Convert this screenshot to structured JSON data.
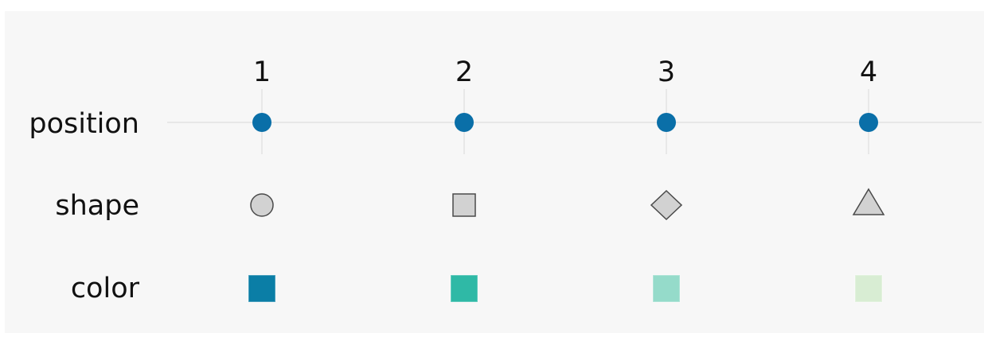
{
  "columns": [
    "1",
    "2",
    "3",
    "4"
  ],
  "rows": {
    "position": "position",
    "shape": "shape",
    "color": "color"
  },
  "shapes": [
    "circle-icon",
    "square-icon",
    "diamond-icon",
    "triangle-icon"
  ],
  "colors": {
    "position_point": "#0a6fa8",
    "shape_fill": "#d2d2d2",
    "shape_stroke": "#4a4a4a",
    "axis_line": "#e2e2e2",
    "swatches": [
      "#0b7ea6",
      "#2fb9a6",
      "#95dbca",
      "#d8edd3"
    ]
  }
}
